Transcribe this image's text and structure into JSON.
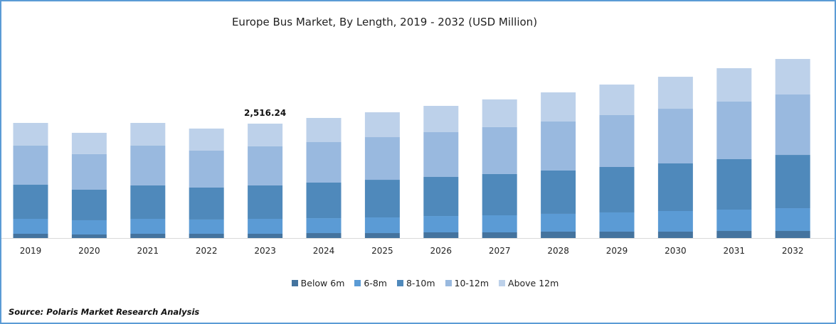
{
  "chart_data": {
    "type": "bar",
    "stacked": true,
    "title": "Europe Bus Market, By Length, 2019 - 2032 (USD Million)",
    "categories": [
      "2019",
      "2020",
      "2021",
      "2022",
      "2023",
      "2024",
      "2025",
      "2026",
      "2027",
      "2028",
      "2029",
      "2030",
      "2031",
      "2032"
    ],
    "series": [
      {
        "name": "Below 6m",
        "color": "#44739e",
        "values": [
          94,
          78,
          94,
          94,
          94,
          109,
          109,
          125,
          125,
          141,
          141,
          141,
          156,
          156
        ]
      },
      {
        "name": "6-8m",
        "color": "#5b9bd5",
        "values": [
          328,
          313,
          328,
          313,
          328,
          328,
          344,
          359,
          375,
          391,
          422,
          453,
          469,
          500
        ]
      },
      {
        "name": "8-10m",
        "color": "#4f89bb",
        "values": [
          750,
          672,
          735,
          703,
          735,
          782,
          828,
          860,
          907,
          953,
          1000,
          1047,
          1110,
          1172
        ]
      },
      {
        "name": "10-12m",
        "color": "#99b9df",
        "values": [
          860,
          782,
          875,
          813,
          860,
          891,
          938,
          985,
          1032,
          1078,
          1141,
          1203,
          1266,
          1329
        ]
      },
      {
        "name": "Above 12m",
        "color": "#bdd1ea",
        "values": [
          500,
          469,
          500,
          485,
          499,
          531,
          547,
          578,
          610,
          641,
          672,
          703,
          735,
          782
        ]
      }
    ],
    "annotations": [
      {
        "category": "2023",
        "text": "2,516.24"
      }
    ],
    "ylim": [
      0,
      4300
    ],
    "grid": false,
    "legend_position": "bottom"
  },
  "source": "Source: Polaris  Market Research Analysis"
}
